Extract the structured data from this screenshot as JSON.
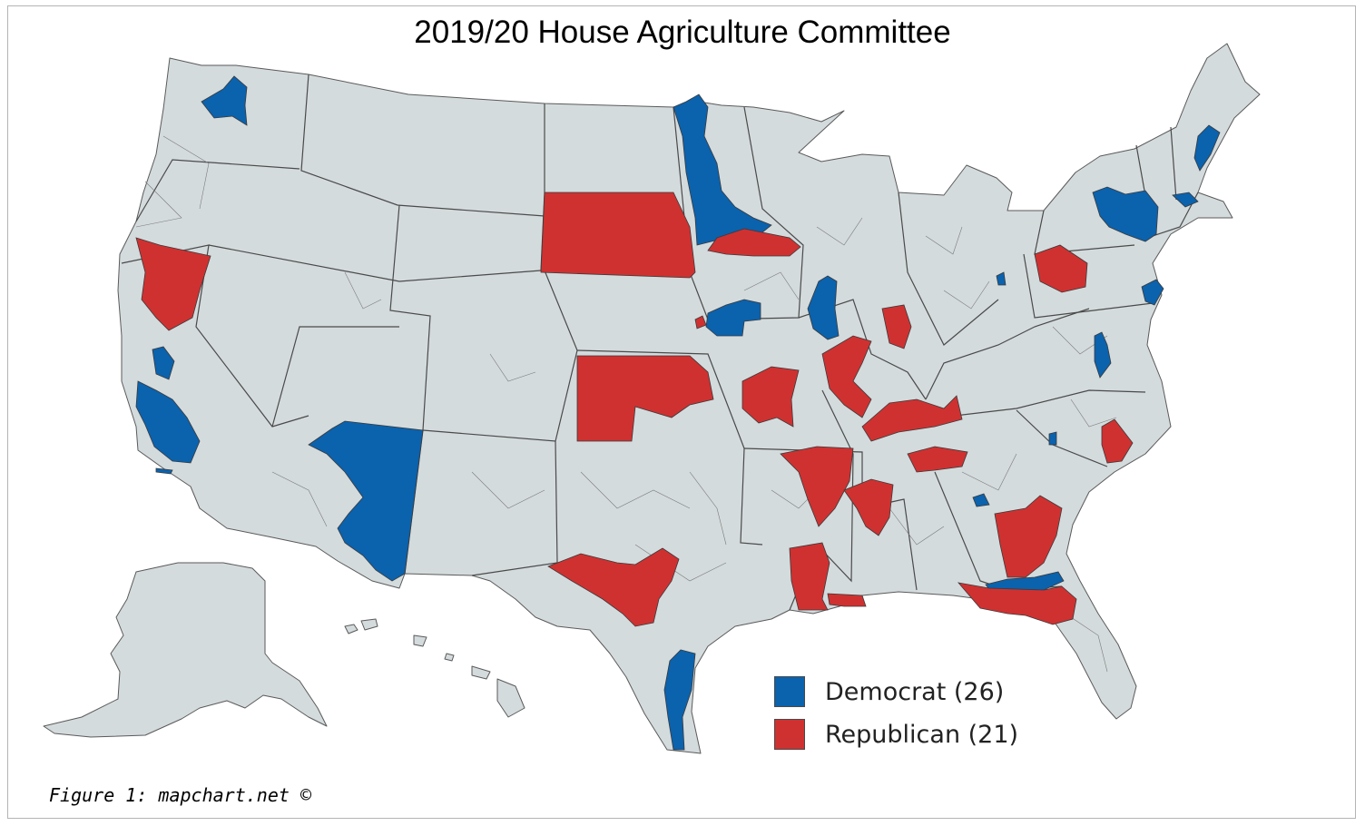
{
  "title": "2019/20 House Agriculture Committee",
  "caption": "Figure 1: mapchart.net ©",
  "colors": {
    "democrat": "#0b62ad",
    "republican": "#cf3131",
    "base": "#d4dbdd",
    "border": "#5a5a5a"
  },
  "legend": [
    {
      "label": "Democrat (26)",
      "party": "democrat"
    },
    {
      "label": "Republican (21)",
      "party": "republican"
    }
  ]
}
